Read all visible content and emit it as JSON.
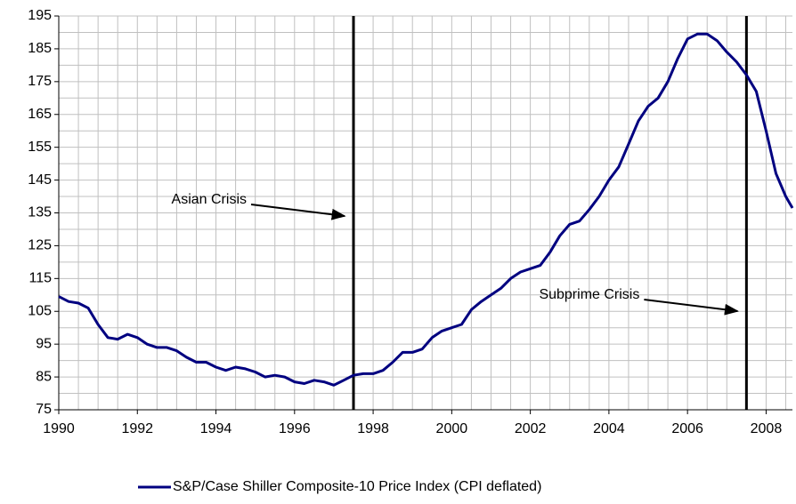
{
  "chart_data": {
    "type": "line",
    "x": [
      1990.0,
      1990.25,
      1990.5,
      1990.75,
      1991.0,
      1991.25,
      1991.5,
      1991.75,
      1992.0,
      1992.25,
      1992.5,
      1992.75,
      1993.0,
      1993.25,
      1993.5,
      1993.75,
      1994.0,
      1994.25,
      1994.5,
      1994.75,
      1995.0,
      1995.25,
      1995.5,
      1995.75,
      1996.0,
      1996.25,
      1996.5,
      1996.75,
      1997.0,
      1997.25,
      1997.5,
      1997.75,
      1998.0,
      1998.25,
      1998.5,
      1998.75,
      1999.0,
      1999.25,
      1999.5,
      1999.75,
      2000.0,
      2000.25,
      2000.5,
      2000.75,
      2001.0,
      2001.25,
      2001.5,
      2001.75,
      2002.0,
      2002.25,
      2002.5,
      2002.75,
      2003.0,
      2003.25,
      2003.5,
      2003.75,
      2004.0,
      2004.25,
      2004.5,
      2004.75,
      2005.0,
      2005.25,
      2005.5,
      2005.75,
      2006.0,
      2006.25,
      2006.5,
      2006.75,
      2007.0,
      2007.25,
      2007.5,
      2007.75,
      2008.0,
      2008.25,
      2008.5,
      2008.67
    ],
    "series": [
      {
        "name": "S&P/Case Shiller Composite-10 Price Index (CPI deflated)",
        "color": "#000080",
        "values": [
          109.5,
          108,
          107.5,
          106,
          101,
          97,
          96.5,
          98,
          97,
          95,
          94,
          94,
          93,
          91,
          89.5,
          89.5,
          88,
          87,
          88,
          87.5,
          86.5,
          85,
          85.5,
          85,
          83.5,
          83,
          84,
          83.5,
          82.5,
          84,
          85.5,
          86,
          86,
          87,
          89.5,
          92.5,
          92.5,
          93.5,
          97,
          99,
          100,
          101,
          105.5,
          108,
          110,
          112,
          115,
          117,
          118,
          119,
          123,
          128,
          131.5,
          132.5,
          136,
          140,
          145,
          149,
          156,
          163,
          167.5,
          170,
          175,
          182,
          188,
          189.5,
          189.5,
          187.5,
          184,
          181,
          177,
          172,
          160,
          147,
          140,
          136.5
        ]
      }
    ],
    "xlim": [
      1990,
      2008.67
    ],
    "ylim": [
      75,
      195
    ],
    "xticks": [
      1990,
      1992,
      1994,
      1996,
      1998,
      2000,
      2002,
      2004,
      2006,
      2008
    ],
    "yticks": [
      75,
      85,
      95,
      105,
      115,
      125,
      135,
      145,
      155,
      165,
      175,
      185,
      195
    ],
    "grid": true,
    "events": [
      {
        "label": "Asian Crisis",
        "x": 1997.5
      },
      {
        "label": "Subprime Crisis",
        "x": 2007.5
      }
    ],
    "legend": "bottom"
  }
}
